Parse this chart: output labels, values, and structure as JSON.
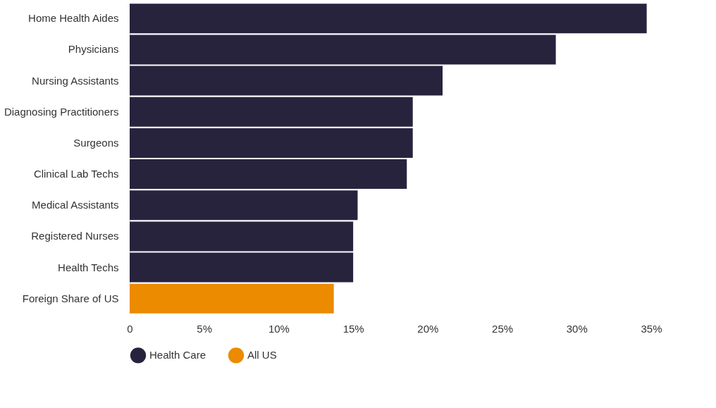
{
  "chart_data": {
    "type": "bar",
    "orientation": "horizontal",
    "categories": [
      "Home Health Aides",
      "Physicians",
      "Nursing Assistants",
      "Diagnosing Practitioners",
      "Surgeons",
      "Clinical Lab Techs",
      "Medical Assistants",
      "Registered Nurses",
      "Health Techs",
      "Foreign Share of US"
    ],
    "series": [
      {
        "name": "Health Care",
        "color": "#28233d",
        "values": [
          34.7,
          28.6,
          21.0,
          19.0,
          19.0,
          18.6,
          15.3,
          15.0,
          15.0,
          null
        ]
      },
      {
        "name": "All US",
        "color": "#ec8a00",
        "values": [
          null,
          null,
          null,
          null,
          null,
          null,
          null,
          null,
          null,
          13.7
        ]
      }
    ],
    "xlim": [
      0,
      35
    ],
    "xticks": [
      0,
      {
        "value": 5,
        "label": "5%"
      },
      {
        "value": 10,
        "label": "10%"
      },
      {
        "value": 15,
        "label": "15%"
      },
      {
        "value": 20,
        "label": "20%"
      },
      {
        "value": 25,
        "label": "25%"
      },
      {
        "value": 30,
        "label": "30%"
      },
      {
        "value": 35,
        "label": "35%"
      }
    ],
    "grid": false,
    "legend": "bottom"
  }
}
